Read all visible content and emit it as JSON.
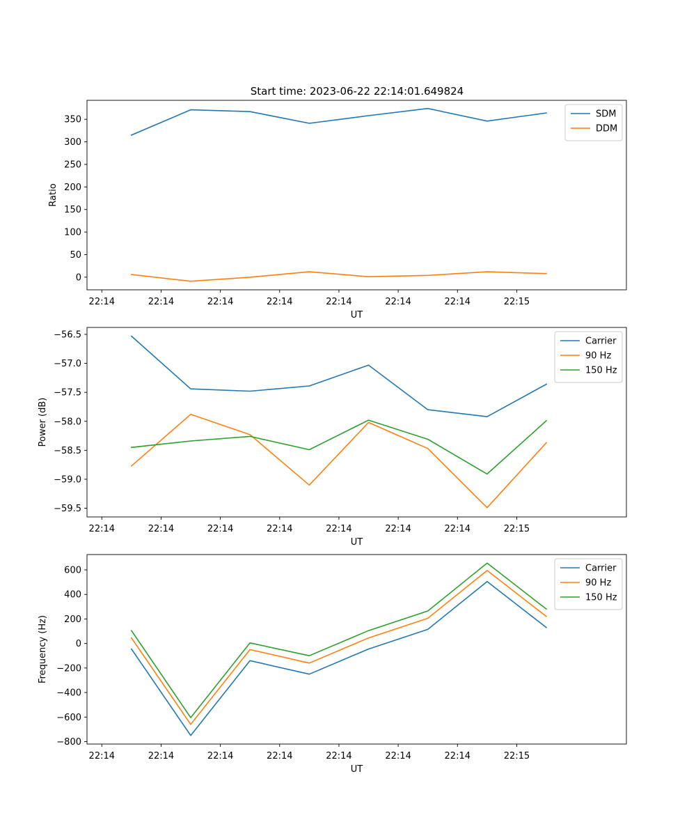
{
  "figure_title": "Start time: 2023-06-22 22:14:01.649824",
  "colors": {
    "blue": "#1f77b4",
    "orange": "#ff7f0e",
    "green": "#2ca02c"
  },
  "chart_data": [
    {
      "type": "line",
      "ylabel": "Ratio",
      "xlabel": "UT",
      "x_tick_labels": [
        "22:14",
        "22:14",
        "22:14",
        "22:14",
        "22:14",
        "22:14",
        "22:14",
        "22:15"
      ],
      "xlim": [
        -0.75,
        8.35
      ],
      "ylim": [
        -28,
        392
      ],
      "y_ticks": [
        0,
        50,
        100,
        150,
        200,
        250,
        300,
        350
      ],
      "y_tick_labels": [
        "0",
        "50",
        "100",
        "150",
        "200",
        "250",
        "300",
        "350"
      ],
      "legend_position": "top-right",
      "series": [
        {
          "name": "SDM",
          "color": "#1f77b4",
          "values": [
            315,
            371,
            367,
            341,
            358,
            374,
            346,
            364
          ]
        },
        {
          "name": "DDM",
          "color": "#ff7f0e",
          "values": [
            6,
            -9,
            0,
            12,
            1,
            4,
            12,
            8
          ]
        }
      ]
    },
    {
      "type": "line",
      "ylabel": "Power (dB)",
      "xlabel": "UT",
      "x_tick_labels": [
        "22:14",
        "22:14",
        "22:14",
        "22:14",
        "22:14",
        "22:14",
        "22:14",
        "22:15"
      ],
      "xlim": [
        -0.75,
        8.35
      ],
      "ylim": [
        -59.65,
        -56.38
      ],
      "y_ticks": [
        -59.5,
        -59.0,
        -58.5,
        -58.0,
        -57.5,
        -57.0,
        -56.5
      ],
      "y_tick_labels": [
        "−59.5",
        "−59.0",
        "−58.5",
        "−58.0",
        "−57.5",
        "−57.0",
        "−56.5"
      ],
      "legend_position": "top-right",
      "series": [
        {
          "name": "Carrier",
          "color": "#1f77b4",
          "values": [
            -56.53,
            -57.44,
            -57.48,
            -57.39,
            -57.03,
            -57.8,
            -57.92,
            -57.36
          ]
        },
        {
          "name": "90 Hz",
          "color": "#ff7f0e",
          "values": [
            -58.77,
            -57.88,
            -58.23,
            -59.1,
            -58.02,
            -58.47,
            -59.49,
            -58.37
          ]
        },
        {
          "name": "150 Hz",
          "color": "#2ca02c",
          "values": [
            -58.45,
            -58.34,
            -58.26,
            -58.49,
            -57.98,
            -58.31,
            -58.91,
            -57.99
          ]
        }
      ]
    },
    {
      "type": "line",
      "ylabel": "Frequency (Hz)",
      "xlabel": "UT",
      "x_tick_labels": [
        "22:14",
        "22:14",
        "22:14",
        "22:14",
        "22:14",
        "22:14",
        "22:14",
        "22:15"
      ],
      "xlim": [
        -0.75,
        8.35
      ],
      "ylim": [
        -820,
        725
      ],
      "y_ticks": [
        -800,
        -600,
        -400,
        -200,
        0,
        200,
        400,
        600
      ],
      "y_tick_labels": [
        "−800",
        "−600",
        "−400",
        "−200",
        "0",
        "200",
        "400",
        "600"
      ],
      "legend_position": "top-right",
      "series": [
        {
          "name": "Carrier",
          "color": "#1f77b4",
          "values": [
            -45,
            -750,
            -140,
            -250,
            -45,
            115,
            505,
            130
          ]
        },
        {
          "name": "90 Hz",
          "color": "#ff7f0e",
          "values": [
            45,
            -660,
            -50,
            -160,
            45,
            205,
            595,
            220
          ]
        },
        {
          "name": "150 Hz",
          "color": "#2ca02c",
          "values": [
            105,
            -605,
            5,
            -100,
            105,
            265,
            655,
            280
          ]
        }
      ]
    }
  ]
}
